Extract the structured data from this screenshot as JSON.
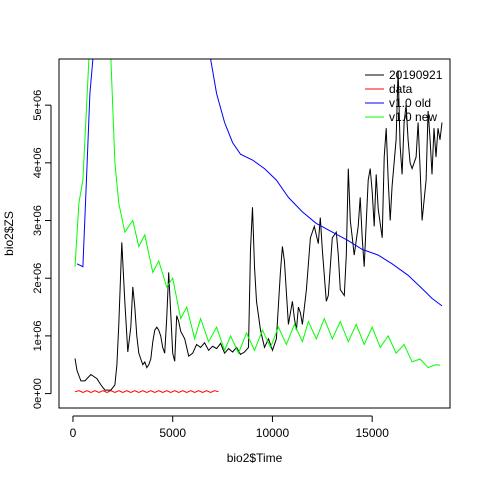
{
  "chart_data": {
    "type": "line",
    "xlabel": "bio2$Time",
    "ylabel": "bio2$ZS",
    "xlim": [
      -700,
      18900
    ],
    "ylim": [
      -250000,
      5800000
    ],
    "x_ticks": [
      {
        "value": 0,
        "label": "0"
      },
      {
        "value": 5000,
        "label": "5000"
      },
      {
        "value": 10000,
        "label": "10000"
      },
      {
        "value": 15000,
        "label": "15000"
      }
    ],
    "y_ticks": [
      {
        "value": 0,
        "label": "0e+00"
      },
      {
        "value": 1000000,
        "label": "1e+06"
      },
      {
        "value": 2000000,
        "label": "2e+06"
      },
      {
        "value": 3000000,
        "label": "3e+06"
      },
      {
        "value": 4000000,
        "label": "4e+06"
      },
      {
        "value": 5000000,
        "label": "5e+06"
      }
    ],
    "legend": {
      "position": "top-right",
      "entries": [
        {
          "label": "20190921",
          "color": "#000000"
        },
        {
          "label": "data",
          "color": "#ff0000"
        },
        {
          "label": "v1.0 old",
          "color": "#0000ff"
        },
        {
          "label": "v1.0 new",
          "color": "#00ff00"
        }
      ]
    },
    "series": [
      {
        "name": "20190921",
        "color": "#000000",
        "points": [
          [
            100,
            610000
          ],
          [
            200,
            400000
          ],
          [
            400,
            220000
          ],
          [
            600,
            220000
          ],
          [
            900,
            330000
          ],
          [
            1200,
            260000
          ],
          [
            1400,
            150000
          ],
          [
            1600,
            60000
          ],
          [
            1900,
            60000
          ],
          [
            2100,
            150000
          ],
          [
            2200,
            500000
          ],
          [
            2300,
            1200000
          ],
          [
            2450,
            2620000
          ],
          [
            2600,
            1600000
          ],
          [
            2750,
            720000
          ],
          [
            2900,
            1150000
          ],
          [
            3000,
            1850000
          ],
          [
            3100,
            1500000
          ],
          [
            3200,
            1000000
          ],
          [
            3300,
            700000
          ],
          [
            3400,
            600000
          ],
          [
            3500,
            500000
          ],
          [
            3600,
            550000
          ],
          [
            3700,
            450000
          ],
          [
            3800,
            500000
          ],
          [
            3900,
            600000
          ],
          [
            4000,
            900000
          ],
          [
            4100,
            1100000
          ],
          [
            4200,
            1150000
          ],
          [
            4300,
            1100000
          ],
          [
            4400,
            1000000
          ],
          [
            4500,
            800000
          ],
          [
            4600,
            700000
          ],
          [
            4700,
            1300000
          ],
          [
            4800,
            2100000
          ],
          [
            4900,
            1400000
          ],
          [
            5000,
            700000
          ],
          [
            5100,
            560000
          ],
          [
            5200,
            1350000
          ],
          [
            5300,
            1250000
          ],
          [
            5400,
            1080000
          ],
          [
            5600,
            950000
          ],
          [
            5700,
            800000
          ],
          [
            5800,
            650000
          ],
          [
            6000,
            700000
          ],
          [
            6200,
            850000
          ],
          [
            6400,
            800000
          ],
          [
            6600,
            880000
          ],
          [
            6800,
            750000
          ],
          [
            7000,
            820000
          ],
          [
            7200,
            780000
          ],
          [
            7400,
            870000
          ],
          [
            7600,
            700000
          ],
          [
            7800,
            780000
          ],
          [
            8000,
            720000
          ],
          [
            8200,
            800000
          ],
          [
            8400,
            680000
          ],
          [
            8600,
            720000
          ],
          [
            8700,
            760000
          ],
          [
            8800,
            800000
          ],
          [
            8900,
            2500000
          ],
          [
            9000,
            3230000
          ],
          [
            9100,
            2200000
          ],
          [
            9200,
            1600000
          ],
          [
            9400,
            1100000
          ],
          [
            9600,
            800000
          ],
          [
            9800,
            950000
          ],
          [
            10000,
            750000
          ],
          [
            10200,
            950000
          ],
          [
            10400,
            2100000
          ],
          [
            10500,
            2550000
          ],
          [
            10600,
            2300000
          ],
          [
            10800,
            1200000
          ],
          [
            11000,
            1600000
          ],
          [
            11100,
            1300000
          ],
          [
            11200,
            1100000
          ],
          [
            11300,
            1500000
          ],
          [
            11400,
            1400000
          ],
          [
            11500,
            1200000
          ],
          [
            11700,
            1800000
          ],
          [
            11900,
            2700000
          ],
          [
            12100,
            2900000
          ],
          [
            12300,
            2600000
          ],
          [
            12400,
            3050000
          ],
          [
            12500,
            2500000
          ],
          [
            12700,
            1600000
          ],
          [
            12800,
            1700000
          ],
          [
            12900,
            2200000
          ],
          [
            13000,
            2700000
          ],
          [
            13200,
            2800000
          ],
          [
            13300,
            2400000
          ],
          [
            13400,
            1800000
          ],
          [
            13600,
            1700000
          ],
          [
            13700,
            2400000
          ],
          [
            13800,
            3900000
          ],
          [
            13900,
            3000000
          ],
          [
            14000,
            2700000
          ],
          [
            14100,
            2400000
          ],
          [
            14300,
            2900000
          ],
          [
            14400,
            3400000
          ],
          [
            14500,
            2700000
          ],
          [
            14600,
            2200000
          ],
          [
            14800,
            3700000
          ],
          [
            14900,
            3900000
          ],
          [
            15000,
            3500000
          ],
          [
            15100,
            2900000
          ],
          [
            15200,
            3800000
          ],
          [
            15300,
            3200000
          ],
          [
            15500,
            2700000
          ],
          [
            15600,
            4100000
          ],
          [
            15700,
            4600000
          ],
          [
            15800,
            3700000
          ],
          [
            15900,
            3000000
          ],
          [
            16000,
            3600000
          ],
          [
            16200,
            4400000
          ],
          [
            16300,
            5600000
          ],
          [
            16400,
            4300000
          ],
          [
            16500,
            3800000
          ],
          [
            16600,
            4700000
          ],
          [
            16700,
            5000000
          ],
          [
            16800,
            4400000
          ],
          [
            16900,
            4000000
          ],
          [
            17000,
            3900000
          ],
          [
            17200,
            4100000
          ],
          [
            17300,
            4700000
          ],
          [
            17400,
            3900000
          ],
          [
            17500,
            3000000
          ],
          [
            17700,
            3700000
          ],
          [
            17800,
            4900000
          ],
          [
            17900,
            4400000
          ],
          [
            18000,
            3800000
          ],
          [
            18100,
            4600000
          ],
          [
            18200,
            4100000
          ],
          [
            18300,
            4600000
          ],
          [
            18400,
            4400000
          ],
          [
            18500,
            4700000
          ]
        ]
      },
      {
        "name": "data",
        "color": "#ff0000",
        "points": [
          [
            100,
            30000
          ],
          [
            300,
            50000
          ],
          [
            500,
            20000
          ],
          [
            700,
            50000
          ],
          [
            900,
            20000
          ],
          [
            1100,
            50000
          ],
          [
            1300,
            20000
          ],
          [
            1500,
            50000
          ],
          [
            1700,
            20000
          ],
          [
            1900,
            50000
          ],
          [
            2100,
            20000
          ],
          [
            2300,
            50000
          ],
          [
            2500,
            20000
          ],
          [
            2700,
            50000
          ],
          [
            2900,
            20000
          ],
          [
            3100,
            50000
          ],
          [
            3300,
            20000
          ],
          [
            3500,
            50000
          ],
          [
            3700,
            20000
          ],
          [
            3900,
            50000
          ],
          [
            4100,
            20000
          ],
          [
            4300,
            50000
          ],
          [
            4500,
            20000
          ],
          [
            4700,
            50000
          ],
          [
            4900,
            20000
          ],
          [
            5100,
            50000
          ],
          [
            5300,
            20000
          ],
          [
            5500,
            50000
          ],
          [
            5700,
            20000
          ],
          [
            5900,
            50000
          ],
          [
            6100,
            20000
          ],
          [
            6300,
            50000
          ],
          [
            6500,
            20000
          ],
          [
            6700,
            50000
          ],
          [
            6900,
            20000
          ],
          [
            7100,
            50000
          ],
          [
            7300,
            30000
          ]
        ]
      },
      {
        "name": "v1.0 old",
        "color": "#0000ff",
        "points": [
          [
            200,
            2250000
          ],
          [
            500,
            2200000
          ],
          [
            700,
            3900000
          ],
          [
            850,
            5200000
          ],
          [
            1000,
            5800000
          ],
          [
            6900,
            5800000
          ],
          [
            7200,
            5200000
          ],
          [
            7600,
            4700000
          ],
          [
            8000,
            4350000
          ],
          [
            8400,
            4150000
          ],
          [
            9000,
            4050000
          ],
          [
            9600,
            3900000
          ],
          [
            10200,
            3700000
          ],
          [
            10800,
            3400000
          ],
          [
            11500,
            3150000
          ],
          [
            12200,
            2950000
          ],
          [
            13000,
            2800000
          ],
          [
            13800,
            2650000
          ],
          [
            14500,
            2500000
          ],
          [
            15300,
            2400000
          ],
          [
            16000,
            2250000
          ],
          [
            16800,
            2050000
          ],
          [
            17500,
            1820000
          ],
          [
            18000,
            1650000
          ],
          [
            18500,
            1520000
          ]
        ]
      },
      {
        "name": "v1.0 new",
        "color": "#00ff00",
        "points": [
          [
            100,
            2200000
          ],
          [
            300,
            3300000
          ],
          [
            500,
            3700000
          ],
          [
            800,
            5800000
          ],
          [
            1900,
            5800000
          ],
          [
            2100,
            4000000
          ],
          [
            2300,
            3300000
          ],
          [
            2600,
            2800000
          ],
          [
            3000,
            3000000
          ],
          [
            3300,
            2550000
          ],
          [
            3600,
            2750000
          ],
          [
            4000,
            2100000
          ],
          [
            4300,
            2300000
          ],
          [
            4700,
            1850000
          ],
          [
            5000,
            2000000
          ],
          [
            5400,
            1300000
          ],
          [
            5700,
            1500000
          ],
          [
            6100,
            950000
          ],
          [
            6400,
            1300000
          ],
          [
            6800,
            900000
          ],
          [
            7200,
            1150000
          ],
          [
            7600,
            750000
          ],
          [
            7900,
            1000000
          ],
          [
            8300,
            700000
          ],
          [
            8700,
            1050000
          ],
          [
            9100,
            750000
          ],
          [
            9500,
            1100000
          ],
          [
            9900,
            800000
          ],
          [
            10300,
            1150000
          ],
          [
            10700,
            850000
          ],
          [
            11100,
            1200000
          ],
          [
            11500,
            900000
          ],
          [
            11800,
            1250000
          ],
          [
            12200,
            950000
          ],
          [
            12600,
            1300000
          ],
          [
            13000,
            950000
          ],
          [
            13400,
            1250000
          ],
          [
            13800,
            900000
          ],
          [
            14200,
            1200000
          ],
          [
            14600,
            850000
          ],
          [
            15000,
            1150000
          ],
          [
            15400,
            800000
          ],
          [
            15800,
            1000000
          ],
          [
            16200,
            700000
          ],
          [
            16600,
            850000
          ],
          [
            17000,
            550000
          ],
          [
            17400,
            600000
          ],
          [
            17800,
            450000
          ],
          [
            18200,
            500000
          ],
          [
            18400,
            490000
          ]
        ]
      }
    ]
  }
}
